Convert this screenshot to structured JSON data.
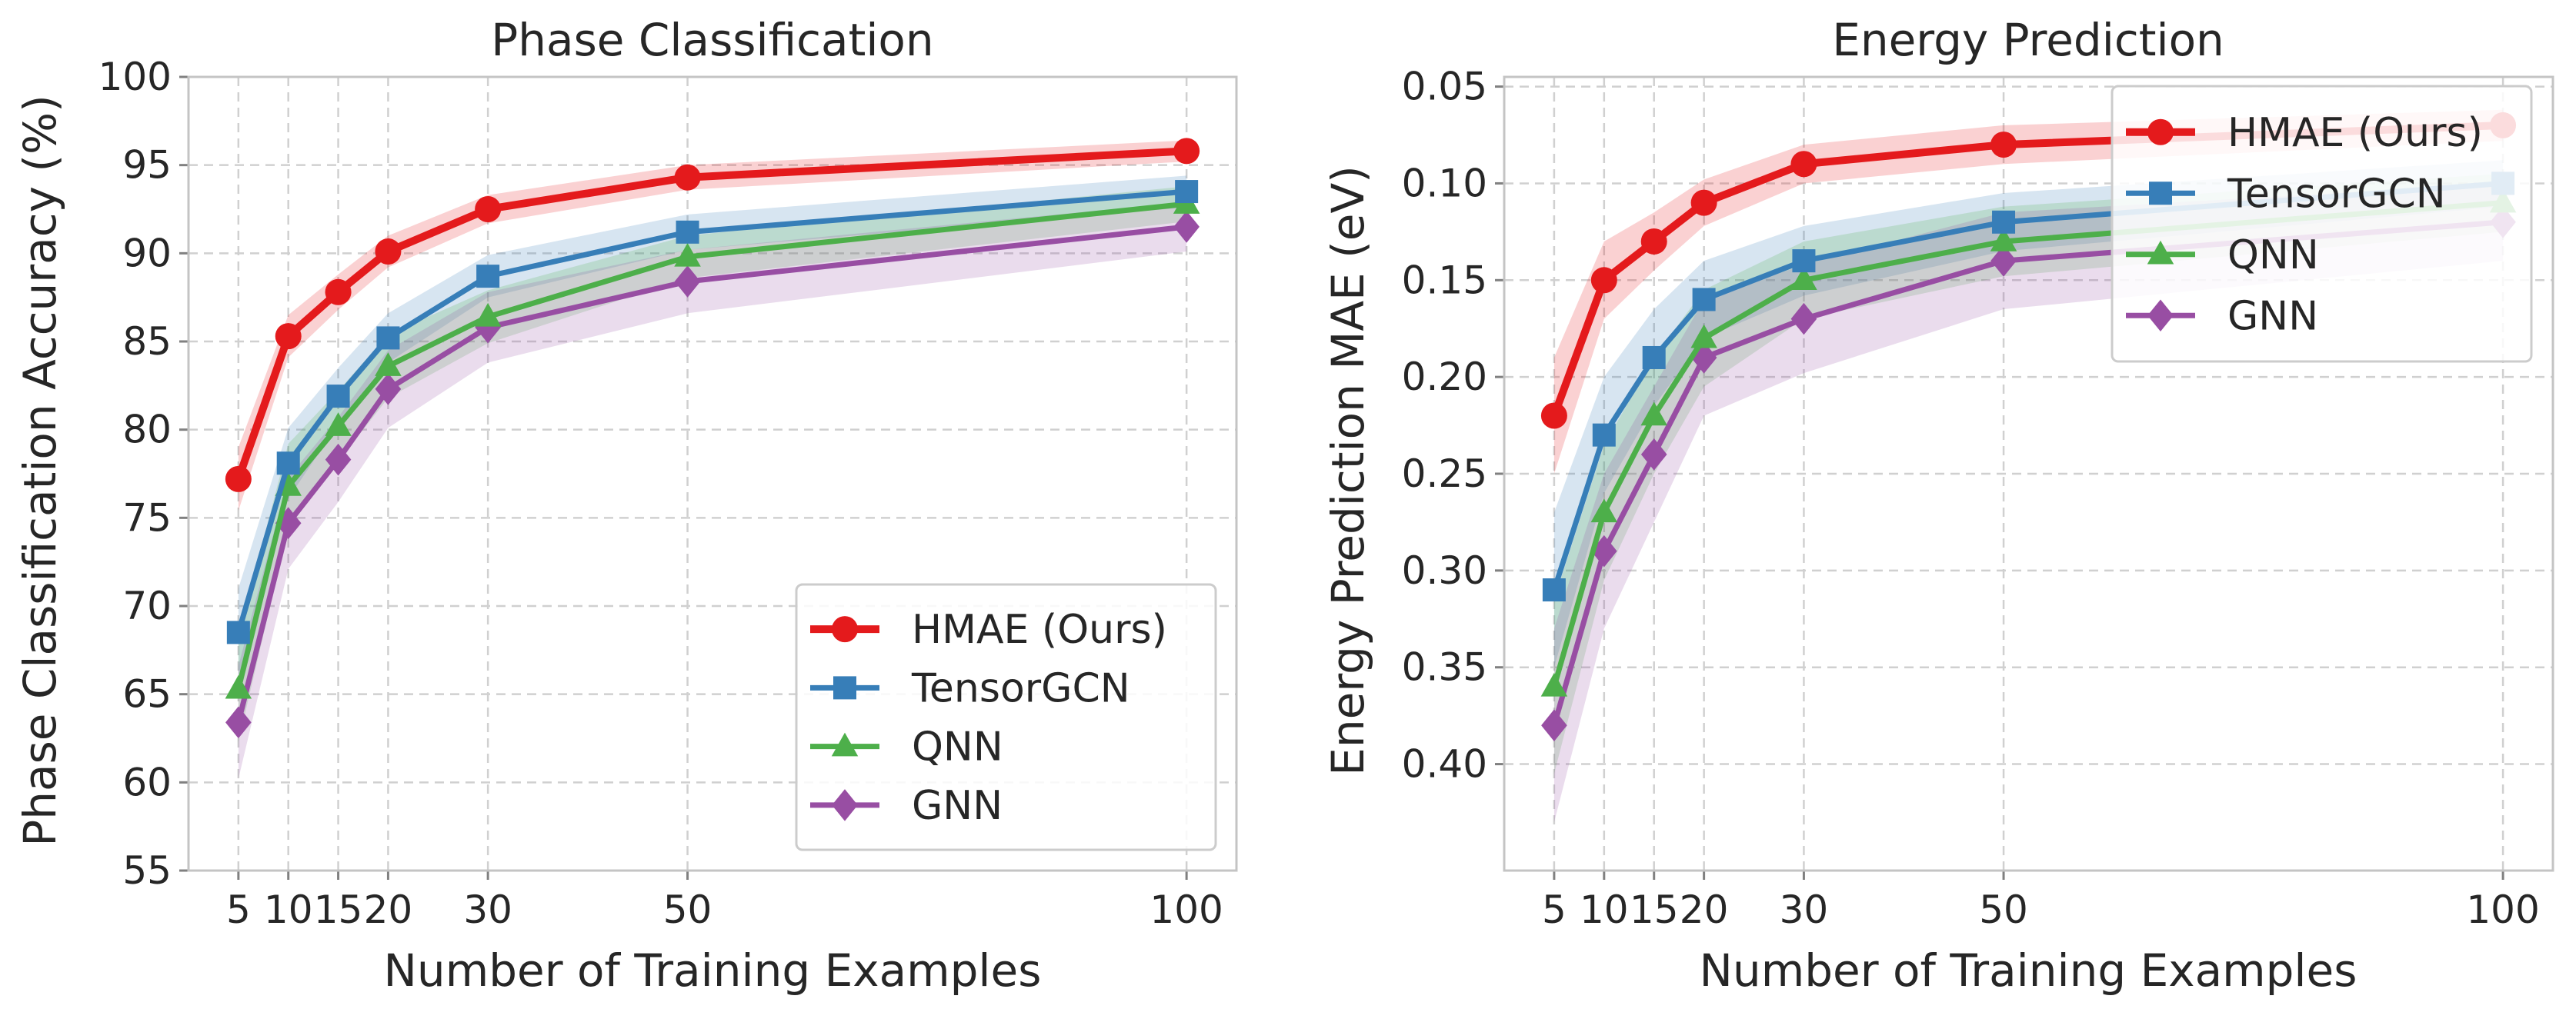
{
  "chart_data": [
    {
      "type": "line",
      "title": "Phase Classification",
      "xlabel": "Number of Training Examples",
      "ylabel": "Phase Classification Accuracy (%)",
      "x": [
        5,
        10,
        15,
        20,
        30,
        50,
        100
      ],
      "xlim": [
        0,
        105
      ],
      "ylim": [
        55,
        100
      ],
      "xticks": [
        5,
        10,
        15,
        20,
        30,
        50,
        100
      ],
      "xtick_labels": [
        "5",
        "10",
        "15",
        "20",
        "30",
        "50",
        "100"
      ],
      "yticks": [
        55,
        60,
        65,
        70,
        75,
        80,
        85,
        90,
        95,
        100
      ],
      "ytick_labels": [
        "55",
        "60",
        "65",
        "70",
        "75",
        "80",
        "85",
        "90",
        "95",
        "100"
      ],
      "y_inverted": false,
      "grid": true,
      "legend_position": "lower-right",
      "series": [
        {
          "name": "HMAE (Ours)",
          "color": "#e41a1c",
          "marker": "circle",
          "values": [
            77.2,
            85.3,
            87.8,
            90.1,
            92.5,
            94.3,
            95.8
          ],
          "band": [
            1.8,
            1.2,
            1.0,
            0.9,
            0.8,
            0.7,
            0.6
          ]
        },
        {
          "name": "TensorGCN",
          "color": "#377eb8",
          "marker": "square",
          "values": [
            68.5,
            78.1,
            81.9,
            85.2,
            88.7,
            91.2,
            93.5
          ],
          "band": [
            2.5,
            2.0,
            1.6,
            1.4,
            1.2,
            1.0,
            0.9
          ]
        },
        {
          "name": "QNN",
          "color": "#4daf4a",
          "marker": "triangle",
          "values": [
            65.3,
            76.8,
            80.2,
            83.6,
            86.4,
            89.8,
            92.8
          ],
          "band": [
            3.0,
            2.4,
            2.0,
            1.8,
            1.5,
            1.2,
            1.0
          ]
        },
        {
          "name": "GNN",
          "color": "#984ea3",
          "marker": "diamond",
          "values": [
            63.4,
            74.7,
            78.3,
            82.3,
            85.8,
            88.4,
            91.5
          ],
          "band": [
            3.2,
            2.6,
            2.4,
            2.2,
            2.0,
            1.8,
            1.4
          ]
        }
      ]
    },
    {
      "type": "line",
      "title": "Energy Prediction",
      "xlabel": "Number of Training Examples",
      "ylabel": "Energy Prediction MAE (eV)",
      "x": [
        5,
        10,
        15,
        20,
        30,
        50,
        100
      ],
      "xlim": [
        0,
        105
      ],
      "ylim": [
        0.045,
        0.455
      ],
      "xticks": [
        5,
        10,
        15,
        20,
        30,
        50,
        100
      ],
      "xtick_labels": [
        "5",
        "10",
        "15",
        "20",
        "30",
        "50",
        "100"
      ],
      "yticks": [
        0.05,
        0.1,
        0.15,
        0.2,
        0.25,
        0.3,
        0.35,
        0.4
      ],
      "ytick_labels": [
        "0.05",
        "0.10",
        "0.15",
        "0.20",
        "0.25",
        "0.30",
        "0.35",
        "0.40"
      ],
      "y_inverted": true,
      "grid": true,
      "legend_position": "upper-right",
      "series": [
        {
          "name": "HMAE (Ours)",
          "color": "#e41a1c",
          "marker": "circle",
          "values": [
            0.22,
            0.15,
            0.13,
            0.11,
            0.09,
            0.08,
            0.07
          ],
          "band": [
            0.03,
            0.02,
            0.015,
            0.012,
            0.01,
            0.01,
            0.008
          ]
        },
        {
          "name": "TensorGCN",
          "color": "#377eb8",
          "marker": "square",
          "values": [
            0.31,
            0.23,
            0.19,
            0.16,
            0.14,
            0.12,
            0.1
          ],
          "band": [
            0.04,
            0.03,
            0.025,
            0.02,
            0.018,
            0.015,
            0.012
          ]
        },
        {
          "name": "QNN",
          "color": "#4daf4a",
          "marker": "triangle",
          "values": [
            0.36,
            0.27,
            0.22,
            0.18,
            0.15,
            0.13,
            0.11
          ],
          "band": [
            0.045,
            0.035,
            0.03,
            0.025,
            0.02,
            0.018,
            0.015
          ]
        },
        {
          "name": "GNN",
          "color": "#984ea3",
          "marker": "diamond",
          "values": [
            0.38,
            0.29,
            0.24,
            0.19,
            0.17,
            0.14,
            0.12
          ],
          "band": [
            0.05,
            0.04,
            0.035,
            0.03,
            0.028,
            0.025,
            0.02
          ]
        }
      ]
    }
  ]
}
